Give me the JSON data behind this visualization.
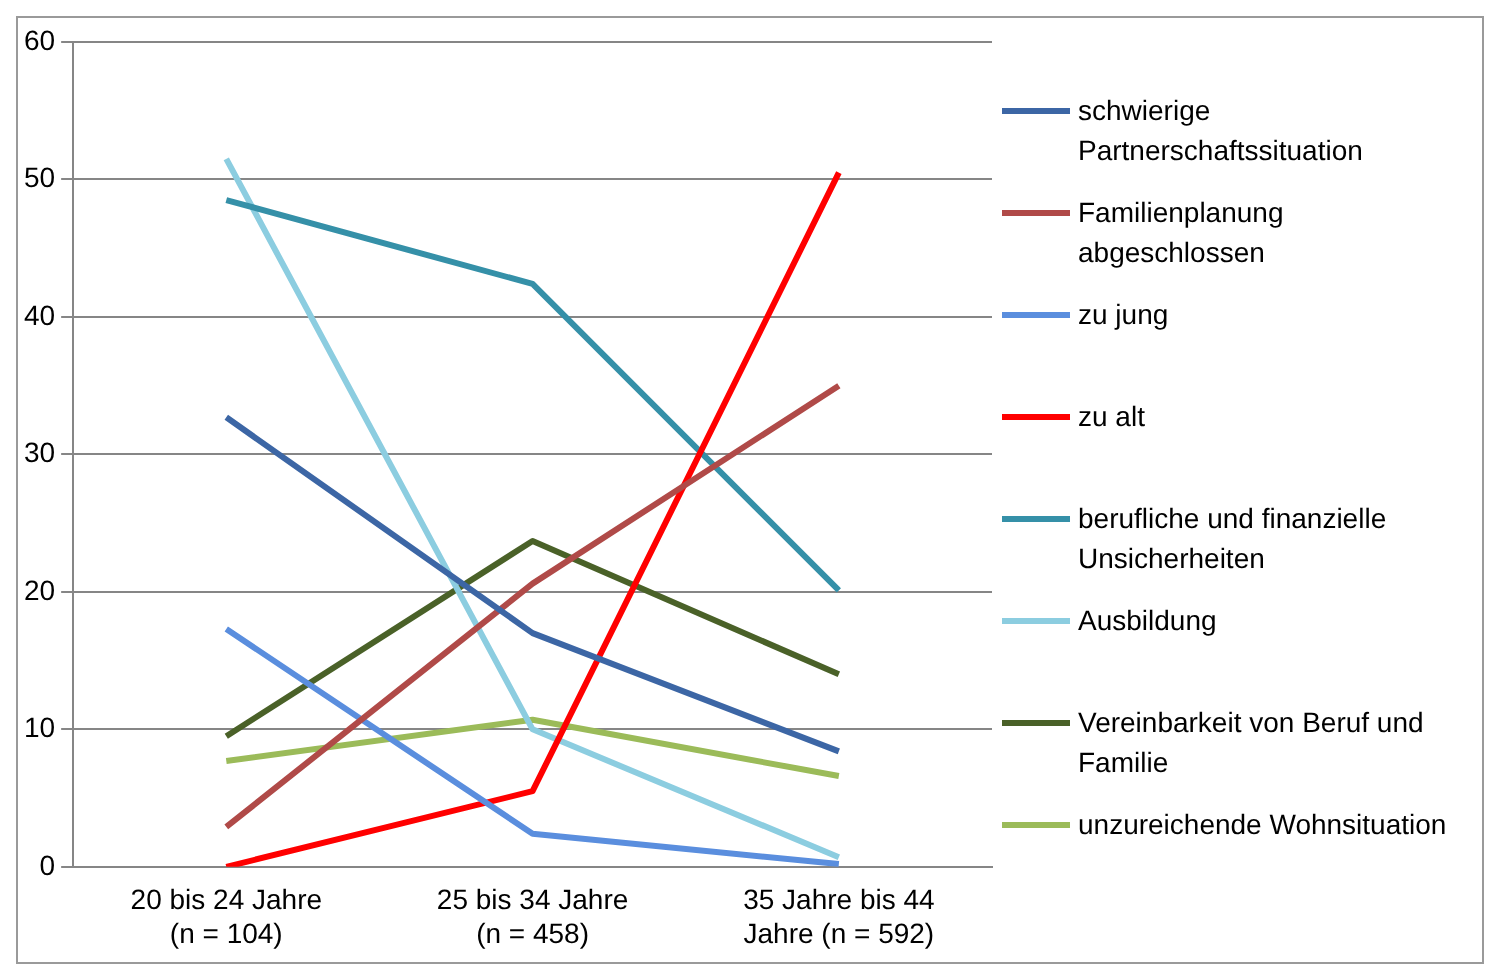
{
  "chart_data": {
    "type": "line",
    "categories": [
      "20 bis 24 Jahre (n = 104)",
      "25 bis 34 Jahre (n = 458)",
      "35 Jahre bis 44 Jahre (n = 592)"
    ],
    "series": [
      {
        "name": "schwierige Partnerschaftssituation",
        "color": "#3c66a5",
        "values": [
          32.7,
          17,
          8.4
        ]
      },
      {
        "name": "Familienplanung abgeschlossen",
        "color": "#b04a48",
        "values": [
          2.9,
          20.6,
          35
        ]
      },
      {
        "name": "zu jung",
        "color": "#5a8ede",
        "values": [
          17.3,
          2.4,
          0.2
        ]
      },
      {
        "name": "zu alt",
        "color": "#ff0000",
        "values": [
          0,
          5.5,
          50.5
        ]
      },
      {
        "name": "berufliche und finanzielle Unsicherheiten",
        "color": "#3590a8",
        "values": [
          48.5,
          42.4,
          20.1
        ]
      },
      {
        "name": "Ausbildung",
        "color": "#8ccde0",
        "values": [
          51.5,
          10,
          0.7
        ]
      },
      {
        "name": "Vereinbarkeit von Beruf und Familie",
        "color": "#4a6128",
        "values": [
          9.5,
          23.7,
          14
        ]
      },
      {
        "name": "unzureichende Wohnsituation",
        "color": "#9bbb59",
        "values": [
          7.7,
          10.7,
          6.6
        ]
      }
    ],
    "ylim": [
      0,
      60
    ],
    "yticks": [
      0,
      10,
      20,
      30,
      40,
      50,
      60
    ],
    "grid": "y",
    "legend": "right",
    "marker": "none",
    "line_style": "solid"
  }
}
